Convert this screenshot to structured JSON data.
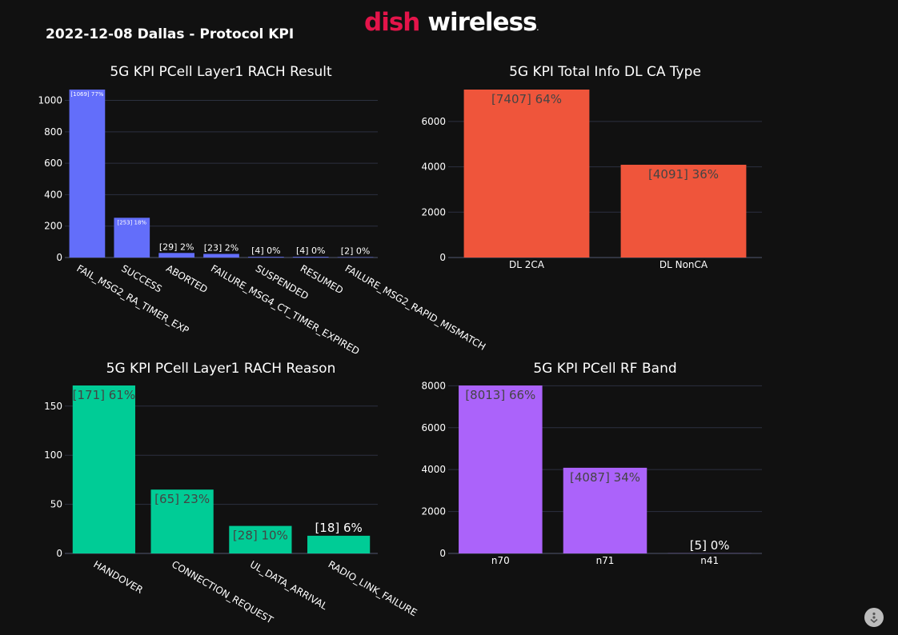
{
  "header": {
    "title": "2022-12-08 Dallas - Protocol KPI",
    "logo_part1": "dish",
    "logo_part2": "wireless",
    "logo_tm": "."
  },
  "colors": {
    "background": "#111111",
    "grid": "#2c3140",
    "blue": "#636efa",
    "red": "#ef553b",
    "green": "#00cc96",
    "purple": "#ab63fa",
    "brand": "#e4144a"
  },
  "icons": {
    "menu": "chevron-down-icon"
  },
  "chart_data": [
    {
      "type": "bar",
      "title": "5G KPI PCell Layer1 RACH Result",
      "categories": [
        "FAIL_MSG2_RA_TIMER_EXP",
        "SUCCESS",
        "ABORTED",
        "FAILURE_MSG4_CT_TIMER_EXPIRED",
        "SUSPENDED",
        "RESUMED",
        "FAILURE_MSG2_RAPID_MISMATCH"
      ],
      "values": [
        1069,
        253,
        29,
        23,
        4,
        4,
        2
      ],
      "labels": [
        "[1069]  77%",
        "[253]  18%",
        "[29]  2%",
        "[23]  2%",
        "[4]  0%",
        "[4]  0%",
        "[2]  0%"
      ],
      "yticks": [
        0,
        200,
        400,
        600,
        800,
        1000
      ],
      "ylim": [
        0,
        1069
      ],
      "color": "#636efa",
      "grid": true
    },
    {
      "type": "bar",
      "title": "5G KPI Total Info DL CA Type",
      "categories": [
        "DL 2CA",
        "DL NonCA"
      ],
      "values": [
        7407,
        4091
      ],
      "labels": [
        "[7407]  64%",
        "[4091]  36%"
      ],
      "yticks": [
        0,
        2000,
        4000,
        6000
      ],
      "ylim": [
        0,
        7407
      ],
      "color": "#ef553b",
      "grid": true
    },
    {
      "type": "bar",
      "title": "5G KPI PCell Layer1 RACH Reason",
      "categories": [
        "HANDOVER",
        "CONNECTION_REQUEST",
        "UL_DATA_ARRIVAL",
        "RADIO_LINK_FAILURE"
      ],
      "values": [
        171,
        65,
        28,
        18
      ],
      "labels": [
        "[171]  61%",
        "[65]  23%",
        "[28]  10%",
        "[18]  6%"
      ],
      "yticks": [
        0,
        50,
        100,
        150
      ],
      "ylim": [
        0,
        171
      ],
      "color": "#00cc96",
      "grid": true
    },
    {
      "type": "bar",
      "title": "5G KPI PCell RF Band",
      "categories": [
        "n70",
        "n71",
        "n41"
      ],
      "values": [
        8013,
        4087,
        5
      ],
      "labels": [
        "[8013]  66%",
        "[4087]  34%",
        "[5]  0%"
      ],
      "yticks": [
        0,
        2000,
        4000,
        6000,
        8000
      ],
      "ylim": [
        0,
        8013
      ],
      "color": "#ab63fa",
      "grid": true
    }
  ]
}
